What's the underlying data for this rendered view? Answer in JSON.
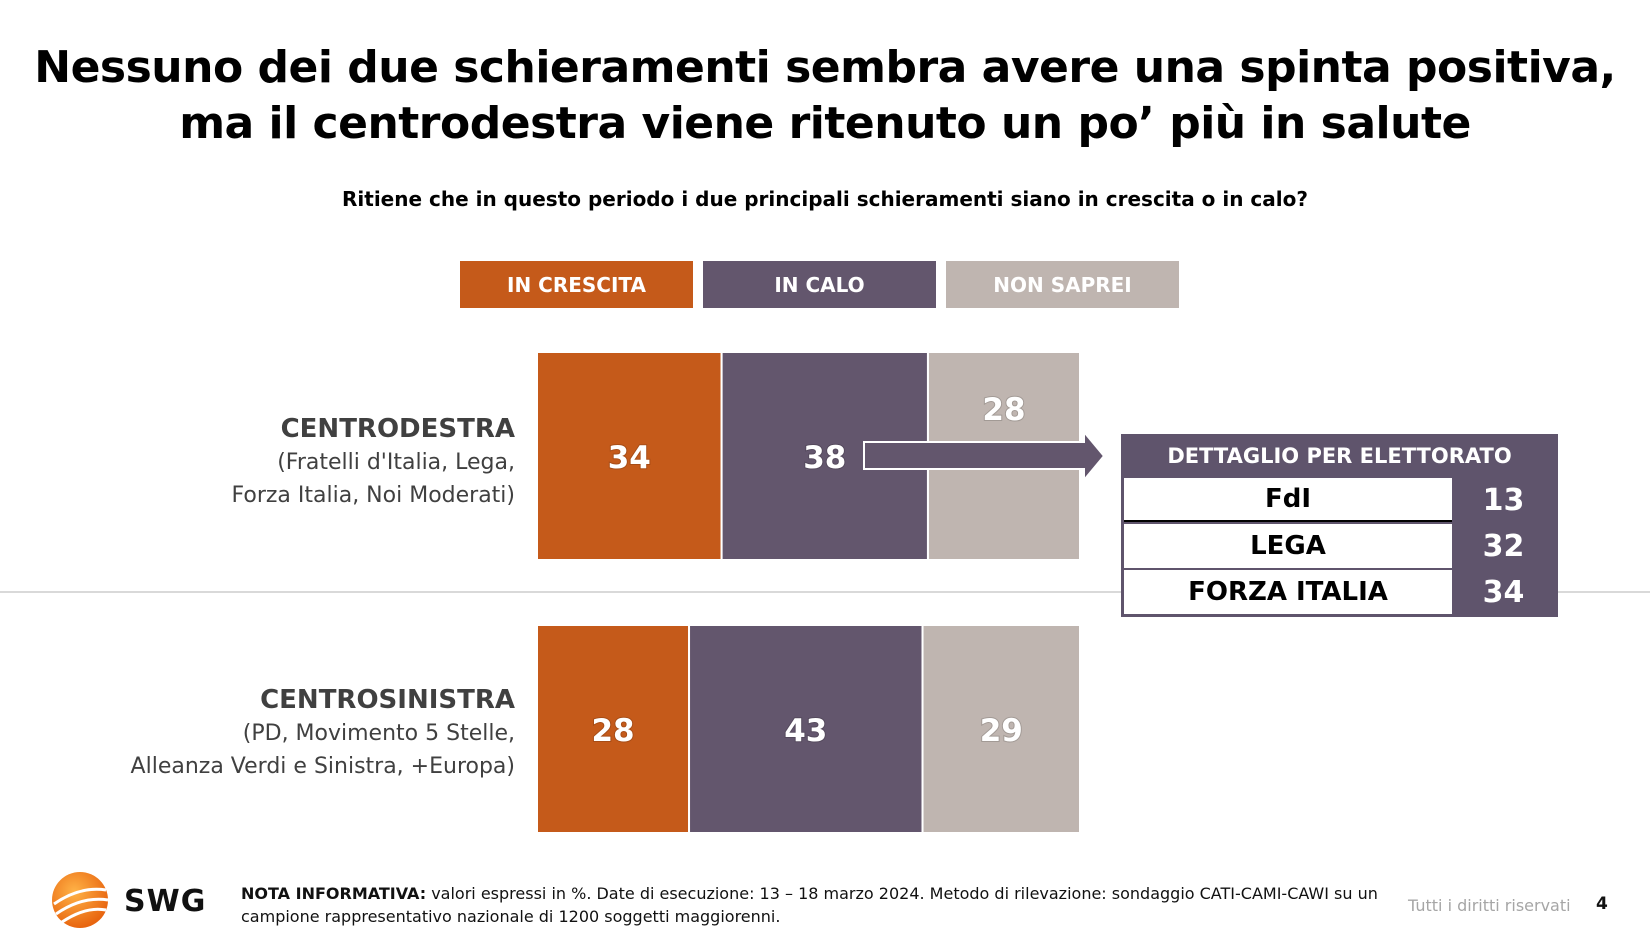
{
  "title": {
    "line1": "Nessuno dei due schieramenti sembra avere una spinta positiva,",
    "line2": "ma il centrodestra viene ritenuto un po’ più in salute"
  },
  "question": "Ritiene che in questo periodo i due principali schieramenti siano in crescita o in calo?",
  "colors": {
    "crescita": "#c55a1a",
    "calo": "#63566d",
    "non_saprei": "#bfb5b0"
  },
  "chart_data": {
    "type": "bar",
    "orientation": "horizontal-stacked-100",
    "series": [
      {
        "name": "IN CRESCITA",
        "values": [
          34,
          28
        ],
        "color": "#c55a1a"
      },
      {
        "name": "IN CALO",
        "values": [
          38,
          43
        ],
        "color": "#63566d"
      },
      {
        "name": "NON SAPREI",
        "values": [
          28,
          29
        ],
        "color": "#bfb5b0"
      }
    ],
    "categories": [
      {
        "name": "CENTRODESTRA",
        "sub1": "(Fratelli d'Italia, Lega,",
        "sub2": "Forza Italia, Noi Moderati)"
      },
      {
        "name": "CENTROSINISTRA",
        "sub1": "(PD, Movimento 5 Stelle,",
        "sub2": "Alleanza Verdi e Sinistra, +Europa)"
      }
    ],
    "legend_position": "top",
    "unit": "%"
  },
  "detail": {
    "title": "DETTAGLIO PER ELETTORATO",
    "rows": [
      {
        "label": "FdI",
        "value": "13"
      },
      {
        "label": "LEGA",
        "value": "32"
      },
      {
        "label": "FORZA ITALIA",
        "value": "34"
      }
    ]
  },
  "footer": {
    "logo_text": "SWG",
    "note_bold": "NOTA INFORMATIVA:",
    "note_text": " valori espressi in %. Date di esecuzione: 13 – 18 marzo 2024. Metodo di rilevazione: sondaggio CATI-CAMI-CAWI su un campione rappresentativo nazionale di 1200 soggetti maggiorenni.",
    "rights": "Tutti i diritti riservati",
    "page": "4"
  }
}
